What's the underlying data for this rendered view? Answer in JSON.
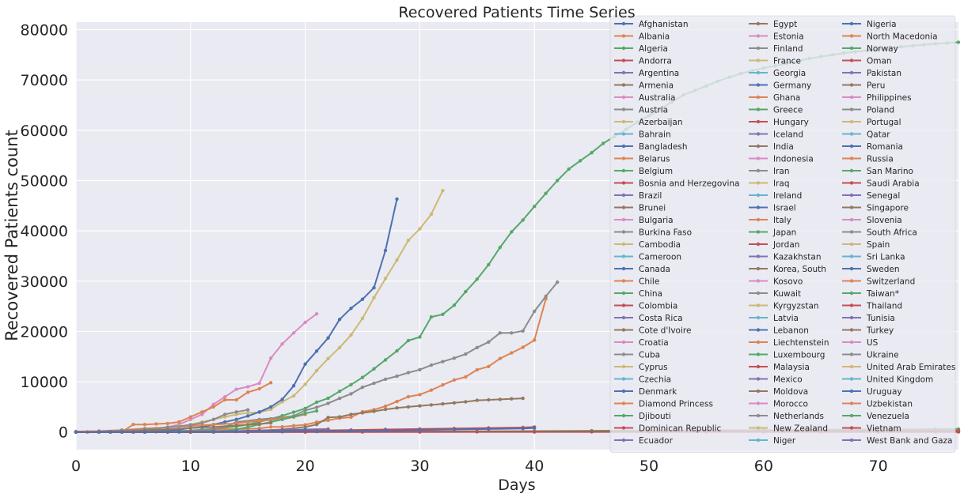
{
  "chart_data": {
    "type": "line",
    "title": "Recovered Patients Time Series",
    "xlabel": "Days",
    "ylabel": "Recovered Patients count",
    "xlim": [
      0,
      77
    ],
    "ylim": [
      -3500,
      81500
    ],
    "x_ticks": [
      0,
      10,
      20,
      30,
      40,
      50,
      60,
      70
    ],
    "y_ticks": [
      0,
      10000,
      20000,
      30000,
      40000,
      50000,
      60000,
      70000,
      80000
    ],
    "grid": true,
    "legend_position": "top-right",
    "legend_columns": 3,
    "palette": [
      "#4c72b0",
      "#dd8452",
      "#55a868",
      "#c44e52",
      "#8172b3",
      "#937860",
      "#da8bc3",
      "#8c8c8c",
      "#ccb974",
      "#64b5cd"
    ],
    "background_color": "#eaeaf2",
    "legend": [
      "Afghanistan",
      "Albania",
      "Algeria",
      "Andorra",
      "Argentina",
      "Armenia",
      "Australia",
      "Austria",
      "Azerbaijan",
      "Bahrain",
      "Bangladesh",
      "Belarus",
      "Belgium",
      "Bosnia and Herzegovina",
      "Brazil",
      "Brunei",
      "Bulgaria",
      "Burkina Faso",
      "Cambodia",
      "Cameroon",
      "Canada",
      "Chile",
      "China",
      "Colombia",
      "Costa Rica",
      "Cote d'Ivoire",
      "Croatia",
      "Cuba",
      "Cyprus",
      "Czechia",
      "Denmark",
      "Diamond Princess",
      "Djibouti",
      "Dominican Republic",
      "Ecuador",
      "Egypt",
      "Estonia",
      "Finland",
      "France",
      "Georgia",
      "Germany",
      "Ghana",
      "Greece",
      "Hungary",
      "Iceland",
      "India",
      "Indonesia",
      "Iran",
      "Iraq",
      "Ireland",
      "Israel",
      "Italy",
      "Japan",
      "Jordan",
      "Kazakhstan",
      "Korea, South",
      "Kosovo",
      "Kuwait",
      "Kyrgyzstan",
      "Latvia",
      "Lebanon",
      "Liechtenstein",
      "Luxembourg",
      "Malaysia",
      "Mexico",
      "Moldova",
      "Morocco",
      "Netherlands",
      "New Zealand",
      "Niger",
      "Nigeria",
      "North Macedonia",
      "Norway",
      "Oman",
      "Pakistan",
      "Peru",
      "Philippines",
      "Poland",
      "Portugal",
      "Qatar",
      "Romania",
      "Russia",
      "San Marino",
      "Saudi Arabia",
      "Senegal",
      "Singapore",
      "Slovenia",
      "South Africa",
      "Spain",
      "Sri Lanka",
      "Sweden",
      "Switzerland",
      "Taiwan*",
      "Thailand",
      "Tunisia",
      "Turkey",
      "US",
      "Ukraine",
      "United Arab Emirates",
      "United Kingdom",
      "Uruguay",
      "Uzbekistan",
      "Venezuela",
      "Vietnam",
      "West Bank and Gaza"
    ],
    "series": [
      {
        "name": "China",
        "x": [
          0,
          1,
          2,
          3,
          4,
          5,
          6,
          7,
          8,
          9,
          10,
          11,
          12,
          13,
          14,
          15,
          16,
          17,
          18,
          19,
          20,
          21,
          22,
          23,
          24,
          25,
          26,
          27,
          28,
          29,
          30,
          31,
          32,
          33,
          34,
          35,
          36,
          37,
          38,
          39,
          40,
          41,
          42,
          43,
          44,
          45,
          46,
          47,
          48,
          49,
          50,
          51,
          52,
          53,
          54,
          55,
          56,
          57,
          58,
          59,
          60,
          61,
          62,
          63,
          64,
          65,
          66,
          67,
          68,
          69,
          70,
          71,
          72,
          73,
          74,
          75,
          76,
          77
        ],
        "y": [
          28,
          30,
          36,
          39,
          52,
          61,
          107,
          126,
          143,
          222,
          284,
          472,
          623,
          852,
          1124,
          1487,
          2011,
          2616,
          3244,
          3946,
          4683,
          5923,
          6723,
          8096,
          9419,
          10844,
          12552,
          14352,
          16121,
          18177,
          18890,
          22886,
          23394,
          25227,
          27905,
          30384,
          33277,
          36711,
          39782,
          42162,
          44854,
          47450,
          50001,
          52292,
          53944,
          55539,
          57388,
          58804,
          60181,
          61644,
          62901,
          64196,
          65660,
          67017,
          67910,
          68798,
          69755,
          70535,
          71266,
          71857,
          72362,
          72814,
          73280,
          73773,
          74261,
          74650,
          74978,
          75362,
          75612,
          75857,
          76100,
          76360,
          76600,
          76800,
          77000,
          77200,
          77350,
          77500
        ]
      },
      {
        "name": "US",
        "x": [
          0,
          1,
          2,
          3,
          4,
          5,
          6,
          7,
          8,
          9,
          10,
          11,
          12,
          13,
          14,
          15,
          16,
          17,
          18,
          19,
          20,
          21
        ],
        "y": [
          0,
          0,
          0,
          50,
          150,
          300,
          500,
          700,
          1000,
          1500,
          2500,
          3500,
          5500,
          7000,
          8500,
          9000,
          9700,
          14700,
          17500,
          19700,
          21800,
          23500
        ]
      },
      {
        "name": "Spain",
        "x": [
          0,
          1,
          2,
          3,
          4,
          5,
          6,
          7,
          8,
          9,
          10,
          11,
          12,
          13,
          14,
          15,
          16,
          17,
          18,
          19,
          20,
          21,
          22,
          23,
          24,
          25,
          26,
          27,
          28,
          29,
          30,
          31,
          32
        ],
        "y": [
          0,
          0,
          0,
          100,
          200,
          300,
          500,
          700,
          900,
          1100,
          1500,
          2000,
          2500,
          3000,
          3500,
          3800,
          3900,
          4500,
          6000,
          7200,
          9500,
          12200,
          14600,
          16800,
          19300,
          22600,
          26700,
          30500,
          34200,
          38100,
          40400,
          43300,
          48000
        ]
      },
      {
        "name": "Italy",
        "x": [
          0,
          1,
          2,
          3,
          4,
          5,
          6,
          7,
          8,
          9,
          10,
          11,
          12,
          13,
          14,
          15,
          16,
          17,
          18,
          19,
          20,
          21,
          22,
          23,
          24,
          25,
          26,
          27,
          28,
          29,
          30,
          31,
          32,
          33,
          34,
          35,
          36,
          37,
          38,
          39,
          40,
          41
        ],
        "y": [
          0,
          0,
          0,
          0,
          1,
          2,
          45,
          46,
          83,
          149,
          160,
          276,
          414,
          523,
          589,
          622,
          724,
          1004,
          1045,
          1258,
          1439,
          1966,
          2335,
          2749,
          2941,
          4025,
          4440,
          5129,
          6072,
          7024,
          7432,
          8326,
          9362,
          10361,
          10950,
          12384,
          13030,
          14620,
          15729,
          16847,
          18278,
          26500
        ]
      },
      {
        "name": "Germany",
        "x": [
          0,
          1,
          2,
          3,
          4,
          5,
          6,
          7,
          8,
          9,
          10,
          11,
          12,
          13,
          14,
          15,
          16,
          17,
          18,
          19,
          20,
          21,
          22,
          23,
          24,
          25,
          26,
          27,
          28
        ],
        "y": [
          0,
          0,
          0,
          0,
          0,
          0,
          0,
          100,
          300,
          500,
          800,
          1000,
          1500,
          2000,
          2500,
          3200,
          4000,
          5000,
          6500,
          9200,
          13500,
          16100,
          18700,
          22400,
          24600,
          26400,
          28700,
          36100,
          46300
        ]
      },
      {
        "name": "Iran",
        "x": [
          0,
          2,
          4,
          6,
          8,
          10,
          12,
          13,
          14,
          16,
          18,
          19,
          20,
          21,
          22,
          23,
          24,
          25,
          26,
          27,
          28,
          29,
          30,
          31,
          32,
          33,
          34,
          35,
          36,
          37,
          38,
          39,
          40,
          41,
          42
        ],
        "y": [
          0,
          0,
          0,
          0,
          0,
          300,
          500,
          1000,
          2000,
          2500,
          2900,
          3200,
          4300,
          4900,
          5700,
          6700,
          7600,
          8900,
          9700,
          10500,
          11100,
          11800,
          12400,
          13300,
          14000,
          14700,
          15500,
          16800,
          17900,
          19700,
          19700,
          20100,
          24000,
          27000,
          29800
        ]
      },
      {
        "name": "Korea, South",
        "x": [
          0,
          2,
          4,
          6,
          8,
          10,
          12,
          14,
          16,
          18,
          20,
          21,
          22,
          23,
          24,
          25,
          26,
          27,
          28,
          29,
          30,
          31,
          32,
          33,
          34,
          35,
          36,
          37,
          38,
          39
        ],
        "y": [
          0,
          20,
          40,
          60,
          80,
          100,
          150,
          200,
          300,
          500,
          1000,
          1500,
          2900,
          3000,
          3500,
          3800,
          4100,
          4500,
          4800,
          5000,
          5200,
          5400,
          5600,
          5800,
          6000,
          6300,
          6400,
          6500,
          6600,
          6700
        ]
      },
      {
        "name": "Diamond Princess",
        "x": [
          0,
          1,
          2,
          3,
          4,
          5,
          6,
          7,
          8,
          9,
          10,
          11,
          12,
          13,
          14,
          15,
          16,
          17
        ],
        "y": [
          0,
          0,
          0,
          0,
          0,
          1500,
          1500,
          1600,
          1700,
          2000,
          3000,
          4000,
          5000,
          6400,
          6400,
          7900,
          8600,
          9800
        ]
      },
      {
        "name": "Switzerland",
        "x": [
          0,
          2,
          4,
          6,
          8,
          10,
          12,
          14,
          15,
          16,
          17,
          18,
          19,
          20
        ],
        "y": [
          100,
          200,
          400,
          700,
          900,
          1200,
          1500,
          1700,
          2000,
          2200,
          2400,
          2700,
          3000,
          3500
        ]
      },
      {
        "name": "Belgium",
        "x": [
          0,
          2,
          4,
          6,
          8,
          10,
          12,
          14,
          15,
          16,
          17,
          18,
          19,
          20,
          21
        ],
        "y": [
          0,
          0,
          0,
          0,
          0,
          0,
          0,
          500,
          1000,
          1500,
          2000,
          2500,
          3000,
          3700,
          4200
        ]
      },
      {
        "name": "Austria",
        "x": [
          0,
          2,
          4,
          6,
          8,
          10,
          11,
          12,
          13,
          14,
          15
        ],
        "y": [
          0,
          100,
          300,
          500,
          900,
          1400,
          1800,
          2500,
          3500,
          4000,
          4400
        ]
      },
      {
        "name": "Turkey",
        "x": [
          0,
          2,
          4,
          6,
          8,
          10,
          12,
          14,
          16,
          17
        ],
        "y": [
          0,
          0,
          100,
          300,
          500,
          800,
          1000,
          1300,
          1600,
          1800
        ]
      },
      {
        "name": "Brazil",
        "x": [
          0,
          2,
          4,
          6,
          8,
          10,
          12,
          14,
          16,
          18,
          20,
          22
        ],
        "y": [
          0,
          0,
          0,
          0,
          0,
          0,
          100,
          200,
          300,
          400,
          500,
          600
        ]
      },
      {
        "name": "Sweden",
        "x": [
          0,
          2,
          4,
          6,
          8,
          10,
          12,
          14,
          16,
          18,
          20
        ],
        "y": [
          0,
          0,
          0,
          0,
          0,
          0,
          0,
          100,
          200,
          300,
          400
        ]
      },
      {
        "name": "Malaysia",
        "x": [
          0,
          3,
          6,
          9,
          12,
          15,
          18,
          21,
          24,
          27,
          30,
          33,
          36,
          39,
          40
        ],
        "y": [
          0,
          10,
          20,
          40,
          80,
          120,
          200,
          300,
          400,
          500,
          600,
          700,
          800,
          900,
          1000
        ]
      },
      {
        "name": "Japan",
        "x": [
          0,
          5,
          10,
          15,
          20,
          25,
          30,
          35,
          40,
          45,
          50,
          55,
          60,
          65,
          70,
          75,
          77
        ],
        "y": [
          0,
          10,
          20,
          30,
          40,
          60,
          100,
          150,
          200,
          250,
          300,
          350,
          400,
          450,
          500,
          550,
          600
        ]
      },
      {
        "name": "Singapore",
        "x": [
          0,
          5,
          10,
          15,
          20,
          25,
          30,
          35,
          40,
          45,
          50,
          55,
          60,
          65,
          70,
          75,
          77
        ],
        "y": [
          0,
          5,
          10,
          20,
          30,
          40,
          60,
          80,
          100,
          120,
          140,
          170,
          200,
          230,
          260,
          300,
          330
        ]
      },
      {
        "name": "Vietnam",
        "x": [
          0,
          10,
          20,
          30,
          40,
          50,
          60,
          70,
          77
        ],
        "y": [
          0,
          5,
          10,
          15,
          16,
          16,
          16,
          16,
          16
        ]
      },
      {
        "name": "Thailand",
        "x": [
          0,
          5,
          10,
          15,
          20,
          25,
          30,
          35,
          40,
          45,
          50,
          55,
          60,
          65,
          70,
          75,
          77
        ],
        "y": [
          0,
          2,
          5,
          10,
          15,
          20,
          25,
          30,
          35,
          40,
          45,
          50,
          55,
          60,
          65,
          70,
          75
        ]
      },
      {
        "name": "Canada",
        "x": [
          0,
          3,
          6,
          9,
          12,
          15,
          18,
          21,
          24,
          27,
          30,
          33,
          36,
          39,
          40
        ],
        "y": [
          0,
          5,
          10,
          20,
          30,
          50,
          70,
          100,
          200,
          300,
          400,
          500,
          600,
          700,
          800
        ]
      }
    ]
  }
}
